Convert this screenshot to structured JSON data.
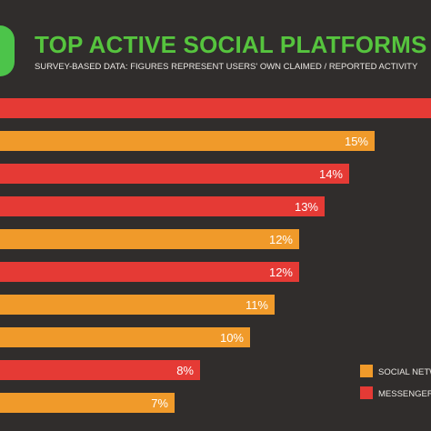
{
  "title": "TOP ACTIVE SOCIAL PLATFORMS",
  "subtitle": "SURVEY-BASED DATA: FIGURES REPRESENT USERS' OWN CLAIMED / REPORTED ACTIVITY",
  "colors": {
    "background": "#302d2c",
    "social_network": "#f09a2a",
    "messenger": "#e53a35",
    "title": "#56c43e",
    "badge": "#4cc44a",
    "value_label": "#ffffff",
    "text": "#e9e6e2"
  },
  "chart_data": {
    "type": "bar",
    "orientation": "horizontal",
    "title": "TOP ACTIVE SOCIAL PLATFORMS",
    "subtitle": "SURVEY-BASED DATA: FIGURES REPRESENT USERS' OWN CLAIMED / REPORTED ACTIVITY",
    "xlim": [
      0,
      16
    ],
    "grid": false,
    "legend_position": "bottom-right",
    "legend": [
      {
        "label": "SOCIAL NETW",
        "color": "#f09a2a"
      },
      {
        "label": "MESSENGER /",
        "color": "#e53a35"
      }
    ],
    "bars": [
      {
        "value": null,
        "label": "",
        "color": "#e53a35"
      },
      {
        "value": 15,
        "label": "15%",
        "color": "#f09a2a"
      },
      {
        "value": 14,
        "label": "14%",
        "color": "#e53a35"
      },
      {
        "value": 13,
        "label": "13%",
        "color": "#e53a35"
      },
      {
        "value": 12,
        "label": "12%",
        "color": "#f09a2a"
      },
      {
        "value": 12,
        "label": "12%",
        "color": "#e53a35"
      },
      {
        "value": 11,
        "label": "11%",
        "color": "#f09a2a"
      },
      {
        "value": 10,
        "label": "10%",
        "color": "#f09a2a"
      },
      {
        "value": 8,
        "label": "8%",
        "color": "#e53a35"
      },
      {
        "value": 7,
        "label": "7%",
        "color": "#f09a2a"
      }
    ]
  }
}
